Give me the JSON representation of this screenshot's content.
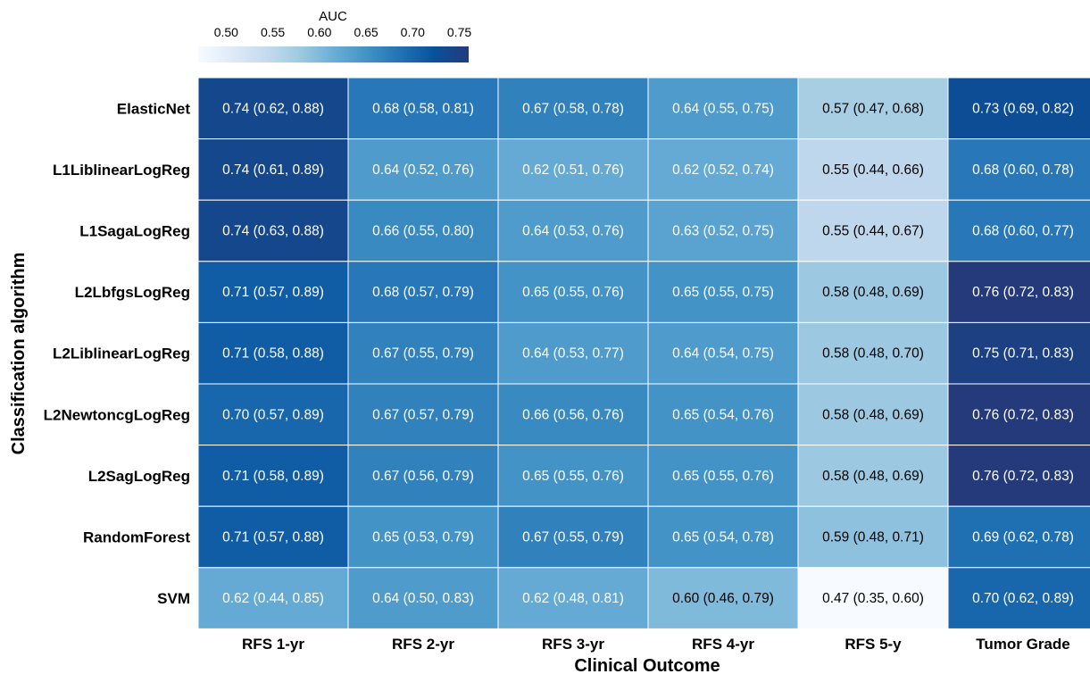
{
  "chart_data": {
    "type": "heatmap",
    "xlabel": "Clinical Outcome",
    "ylabel": "Classification algorithm",
    "colorbar": {
      "title": "AUC",
      "ticks": [
        "0.50",
        "0.55",
        "0.60",
        "0.65",
        "0.70",
        "0.75"
      ],
      "range": [
        0.47,
        0.76
      ]
    },
    "columns": [
      "RFS 1-yr",
      "RFS 2-yr",
      "RFS 3-yr",
      "RFS 4-yr",
      "RFS 5-y",
      "Tumor Grade"
    ],
    "rows": [
      "ElasticNet",
      "L1LiblinearLogReg",
      "L1SagaLogReg",
      "L2LbfgsLogReg",
      "L2LiblinearLogReg",
      "L2NewtoncgLogReg",
      "L2SagLogReg",
      "RandomForest",
      "SVM"
    ],
    "values": [
      [
        0.74,
        0.68,
        0.67,
        0.64,
        0.57,
        0.73
      ],
      [
        0.74,
        0.64,
        0.62,
        0.62,
        0.55,
        0.68
      ],
      [
        0.74,
        0.66,
        0.64,
        0.63,
        0.55,
        0.68
      ],
      [
        0.71,
        0.68,
        0.65,
        0.65,
        0.58,
        0.76
      ],
      [
        0.71,
        0.67,
        0.64,
        0.64,
        0.58,
        0.75
      ],
      [
        0.7,
        0.67,
        0.66,
        0.65,
        0.58,
        0.76
      ],
      [
        0.71,
        0.67,
        0.65,
        0.65,
        0.58,
        0.76
      ],
      [
        0.71,
        0.65,
        0.67,
        0.65,
        0.59,
        0.69
      ],
      [
        0.62,
        0.64,
        0.62,
        0.6,
        0.47,
        0.7
      ]
    ],
    "labels": [
      [
        "0.74 (0.62, 0.88)",
        "0.68 (0.58, 0.81)",
        "0.67 (0.58, 0.78)",
        "0.64 (0.55, 0.75)",
        "0.57 (0.47, 0.68)",
        "0.73 (0.69, 0.82)"
      ],
      [
        "0.74 (0.61, 0.89)",
        "0.64 (0.52, 0.76)",
        "0.62 (0.51, 0.76)",
        "0.62 (0.52, 0.74)",
        "0.55 (0.44, 0.66)",
        "0.68 (0.60, 0.78)"
      ],
      [
        "0.74 (0.63, 0.88)",
        "0.66 (0.55, 0.80)",
        "0.64 (0.53, 0.76)",
        "0.63 (0.52, 0.75)",
        "0.55 (0.44, 0.67)",
        "0.68 (0.60, 0.77)"
      ],
      [
        "0.71 (0.57, 0.89)",
        "0.68 (0.57, 0.79)",
        "0.65 (0.55, 0.76)",
        "0.65 (0.55, 0.75)",
        "0.58 (0.48, 0.69)",
        "0.76 (0.72, 0.83)"
      ],
      [
        "0.71 (0.58, 0.88)",
        "0.67 (0.55, 0.79)",
        "0.64 (0.53, 0.77)",
        "0.64 (0.54, 0.75)",
        "0.58 (0.48, 0.70)",
        "0.75 (0.71, 0.83)"
      ],
      [
        "0.70 (0.57, 0.89)",
        "0.67 (0.57, 0.79)",
        "0.66 (0.56, 0.76)",
        "0.65 (0.54, 0.76)",
        "0.58 (0.48, 0.69)",
        "0.76 (0.72, 0.83)"
      ],
      [
        "0.71 (0.58, 0.89)",
        "0.67 (0.56, 0.79)",
        "0.65 (0.55, 0.76)",
        "0.65 (0.55, 0.76)",
        "0.58 (0.48, 0.69)",
        "0.76 (0.72, 0.83)"
      ],
      [
        "0.71 (0.57, 0.88)",
        "0.65 (0.53, 0.79)",
        "0.67 (0.55, 0.79)",
        "0.65 (0.54, 0.78)",
        "0.59 (0.48, 0.71)",
        "0.69 (0.62, 0.78)"
      ],
      [
        "0.62 (0.44, 0.85)",
        "0.64 (0.50, 0.83)",
        "0.62 (0.48, 0.81)",
        "0.60 (0.46, 0.79)",
        "0.47 (0.35, 0.60)",
        "0.70 (0.62, 0.89)"
      ]
    ],
    "colormap": [
      "#f7fbff",
      "#deebf7",
      "#c6dbef",
      "#9ecae1",
      "#6baed6",
      "#4292c6",
      "#2171b5",
      "#08519c",
      "#253a7a"
    ],
    "grid": false
  }
}
